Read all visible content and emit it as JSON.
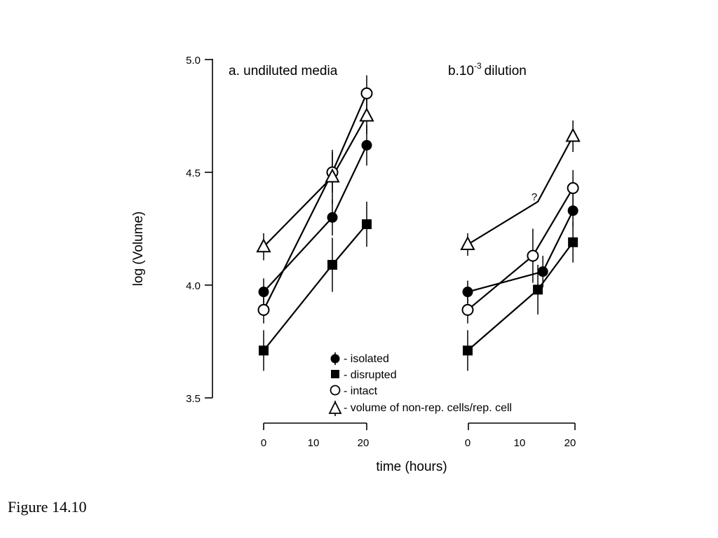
{
  "caption": "Figure 14.10",
  "chart_data": {
    "type": "line",
    "ylabel": "log (Volume)",
    "xlabel": "time (hours)",
    "ylim": [
      3.5,
      5.0
    ],
    "yticks": [
      "3.5",
      "4.0",
      "4.5",
      "5.0"
    ],
    "legend": {
      "placement": "bottom-center",
      "entries": [
        {
          "marker": "filled-circle",
          "label": "- isolated"
        },
        {
          "marker": "filled-square",
          "label": "- disrupted"
        },
        {
          "marker": "open-circle",
          "label": "- intact"
        },
        {
          "marker": "open-triangle",
          "label": "- volume of non-rep. cells/rep. cell"
        }
      ]
    },
    "panels": [
      {
        "title": "a. undiluted media",
        "xlim": [
          0,
          20
        ],
        "xticks": [
          "0",
          "10",
          "20"
        ],
        "series": [
          {
            "marker": "filled-circle",
            "x": [
              0,
              14,
              21
            ],
            "y": [
              3.97,
              4.3,
              4.62
            ],
            "err": [
              0.06,
              0.08,
              0.09
            ]
          },
          {
            "marker": "filled-square",
            "x": [
              0,
              14,
              21
            ],
            "y": [
              3.71,
              4.09,
              4.27
            ],
            "err": [
              0.09,
              0.12,
              0.1
            ]
          },
          {
            "marker": "open-circle",
            "x": [
              0,
              14,
              21
            ],
            "y": [
              3.89,
              4.5,
              4.85
            ],
            "err": [
              0.06,
              0.09,
              0.08
            ]
          },
          {
            "marker": "open-triangle",
            "x": [
              0,
              14,
              21
            ],
            "y": [
              4.17,
              4.48,
              4.75
            ],
            "err": [
              0.06,
              0.12,
              0.08
            ]
          }
        ]
      },
      {
        "title_main": "b.10",
        "title_sup": "-3",
        "title_rest": "dilution",
        "annotation": "?",
        "xlim": [
          0,
          20
        ],
        "xticks": [
          "0",
          "10",
          "20"
        ],
        "series": [
          {
            "marker": "filled-circle",
            "x": [
              0,
              15,
              21
            ],
            "y": [
              3.97,
              4.06,
              4.33
            ],
            "err": [
              0.05,
              0.07,
              0.07
            ]
          },
          {
            "marker": "filled-square",
            "x": [
              0,
              14,
              21
            ],
            "y": [
              3.71,
              3.98,
              4.19
            ],
            "err": [
              0.09,
              0.11,
              0.09
            ]
          },
          {
            "marker": "open-circle",
            "x": [
              0,
              13,
              21
            ],
            "y": [
              3.89,
              4.13,
              4.43
            ],
            "err": [
              0.06,
              0.12,
              0.08
            ]
          },
          {
            "marker": "open-triangle",
            "x": [
              0,
              14,
              21
            ],
            "y": [
              4.18,
              4.37,
              4.66
            ],
            "err": [
              0.05,
              0,
              0.07
            ]
          }
        ]
      }
    ]
  }
}
